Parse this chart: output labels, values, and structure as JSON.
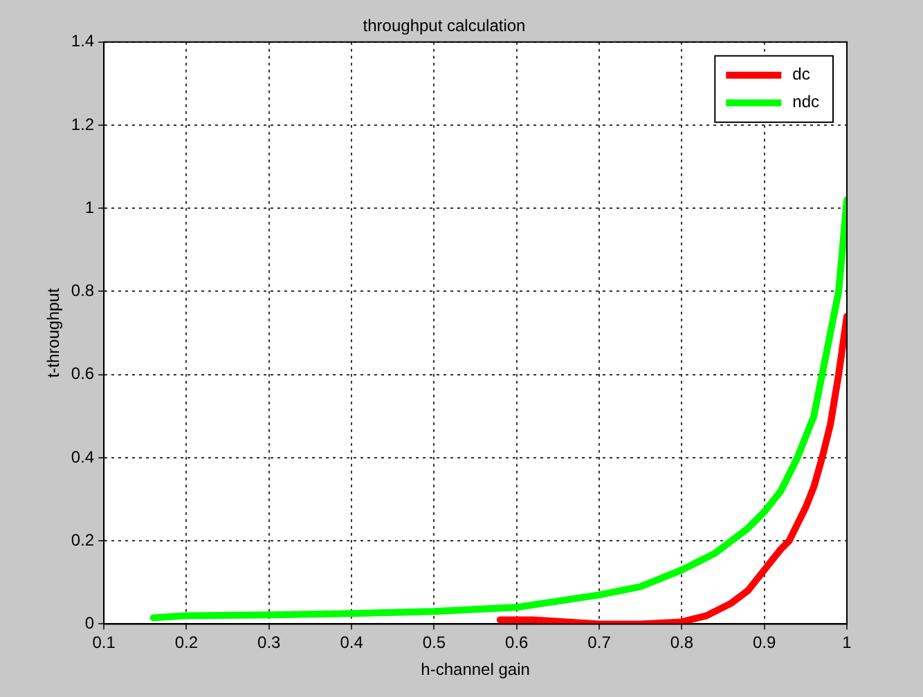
{
  "chart_data": {
    "type": "line",
    "title": "throughput calculation",
    "xlabel": "h-channel gain",
    "ylabel": "t-throughput",
    "xlim": [
      0.1,
      1
    ],
    "xticks": [
      {
        "value": 0.1,
        "label": "0.1"
      },
      {
        "value": 0.2,
        "label": "0.2"
      },
      {
        "value": 0.3,
        "label": "0.3"
      },
      {
        "value": 0.4,
        "label": "0.4"
      },
      {
        "value": 0.5,
        "label": "0.5"
      },
      {
        "value": 0.6,
        "label": "0.6"
      },
      {
        "value": 0.7,
        "label": "0.7"
      },
      {
        "value": 0.8,
        "label": "0.8"
      },
      {
        "value": 0.9,
        "label": "0.9"
      },
      1
    ],
    "ylim": [
      0,
      1.4
    ],
    "yticks": [
      0,
      0.2,
      0.4,
      0.6,
      0.8,
      1,
      1.2,
      1.4
    ],
    "grid": true,
    "legend": "top right",
    "line_style": "solid",
    "marker": "none",
    "series": [
      {
        "name": "dc",
        "color": "#ff0000",
        "x": [
          0.58,
          0.62,
          0.66,
          0.7,
          0.75,
          0.8,
          0.83,
          0.86,
          0.88,
          0.9,
          0.92,
          0.93,
          0.95,
          0.96,
          0.97,
          0.98,
          0.99,
          1
        ],
        "values": [
          0.01,
          0.01,
          0.005,
          0,
          0,
          0.005,
          0.02,
          0.05,
          0.08,
          0.13,
          0.18,
          0.2,
          0.28,
          0.33,
          0.4,
          0.48,
          0.6,
          0.74
        ]
      },
      {
        "name": "ndc",
        "color": "#00ff00",
        "x": [
          0.16,
          0.2,
          0.3,
          0.4,
          0.5,
          0.6,
          0.7,
          0.75,
          0.8,
          0.84,
          0.86,
          0.88,
          0.9,
          0.92,
          0.94,
          0.96,
          0.97,
          0.98,
          0.99,
          1
        ],
        "values": [
          0.015,
          0.02,
          0.022,
          0.025,
          0.03,
          0.04,
          0.07,
          0.09,
          0.13,
          0.17,
          0.2,
          0.23,
          0.27,
          0.32,
          0.4,
          0.5,
          0.6,
          0.7,
          0.8,
          1.02
        ]
      }
    ]
  }
}
